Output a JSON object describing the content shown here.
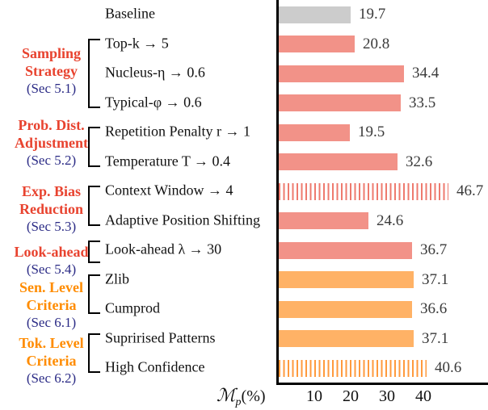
{
  "chart_data": {
    "type": "bar",
    "orientation": "horizontal",
    "title": "",
    "xlabel_main": "ℳ",
    "xlabel_sub": "p",
    "xlabel_suffix": "(%)",
    "xticks": [
      10,
      20,
      30,
      40
    ],
    "xlim": [
      0,
      57
    ],
    "grid": false,
    "legend": "none",
    "bars": [
      {
        "label": "Baseline",
        "value": 19.7,
        "style": "gray"
      },
      {
        "label": "Top-k → 5",
        "value": 20.8,
        "style": "salmon"
      },
      {
        "label": "Nucleus-η → 0.6",
        "value": 34.4,
        "style": "salmon"
      },
      {
        "label": "Typical-φ → 0.6",
        "value": 33.5,
        "style": "salmon"
      },
      {
        "label": "Repetition Penalty r → 1",
        "value": 19.5,
        "style": "salmon"
      },
      {
        "label": "Temperature T → 0.4",
        "value": 32.6,
        "style": "salmon"
      },
      {
        "label": "Context Window → 4",
        "value": 46.7,
        "style": "salmon-hatch"
      },
      {
        "label": "Adaptive Position Shifting",
        "value": 24.6,
        "style": "salmon"
      },
      {
        "label": "Look-ahead λ → 30",
        "value": 36.7,
        "style": "salmon"
      },
      {
        "label": "Zlib",
        "value": 37.1,
        "style": "orange"
      },
      {
        "label": "Cumprod",
        "value": 36.6,
        "style": "orange"
      },
      {
        "label": "Suprirised Patterns",
        "value": 37.1,
        "style": "orange"
      },
      {
        "label": "High Confidence",
        "value": 40.6,
        "style": "orange-hatch"
      }
    ],
    "groups": [
      {
        "lines": [
          "Sampling",
          "Strategy"
        ],
        "sec": "(Sec 5.1)",
        "color": "red",
        "rows": [
          1,
          3
        ]
      },
      {
        "lines": [
          "Prob. Dist.",
          "Adjustment"
        ],
        "sec": "(Sec 5.2)",
        "color": "red",
        "rows": [
          4,
          5
        ]
      },
      {
        "lines": [
          "Exp. Bias",
          "Reduction"
        ],
        "sec": "(Sec 5.3)",
        "color": "red",
        "rows": [
          6,
          7
        ]
      },
      {
        "lines": [
          "Look-ahead"
        ],
        "sec": "(Sec 5.4)",
        "color": "red",
        "rows": [
          8,
          8
        ]
      },
      {
        "lines": [
          "Sen. Level",
          "Criteria"
        ],
        "sec": "(Sec 6.1)",
        "color": "orange",
        "rows": [
          9,
          10
        ]
      },
      {
        "lines": [
          "Tok. Level",
          "Criteria"
        ],
        "sec": "(Sec 6.2)",
        "color": "orange",
        "rows": [
          11,
          12
        ]
      }
    ],
    "colors": {
      "gray": "#CCCCCC",
      "salmon": "#F29288",
      "orange": "#FFB266",
      "salmon_hatch": "#EE7A6E",
      "orange_hatch": "#FF9A3D",
      "group_red": "#E8432F",
      "group_orange": "#FF8C00",
      "sec_navy": "#2A2A85",
      "axis": "#000000",
      "value_text": "#3A3A3A"
    }
  }
}
